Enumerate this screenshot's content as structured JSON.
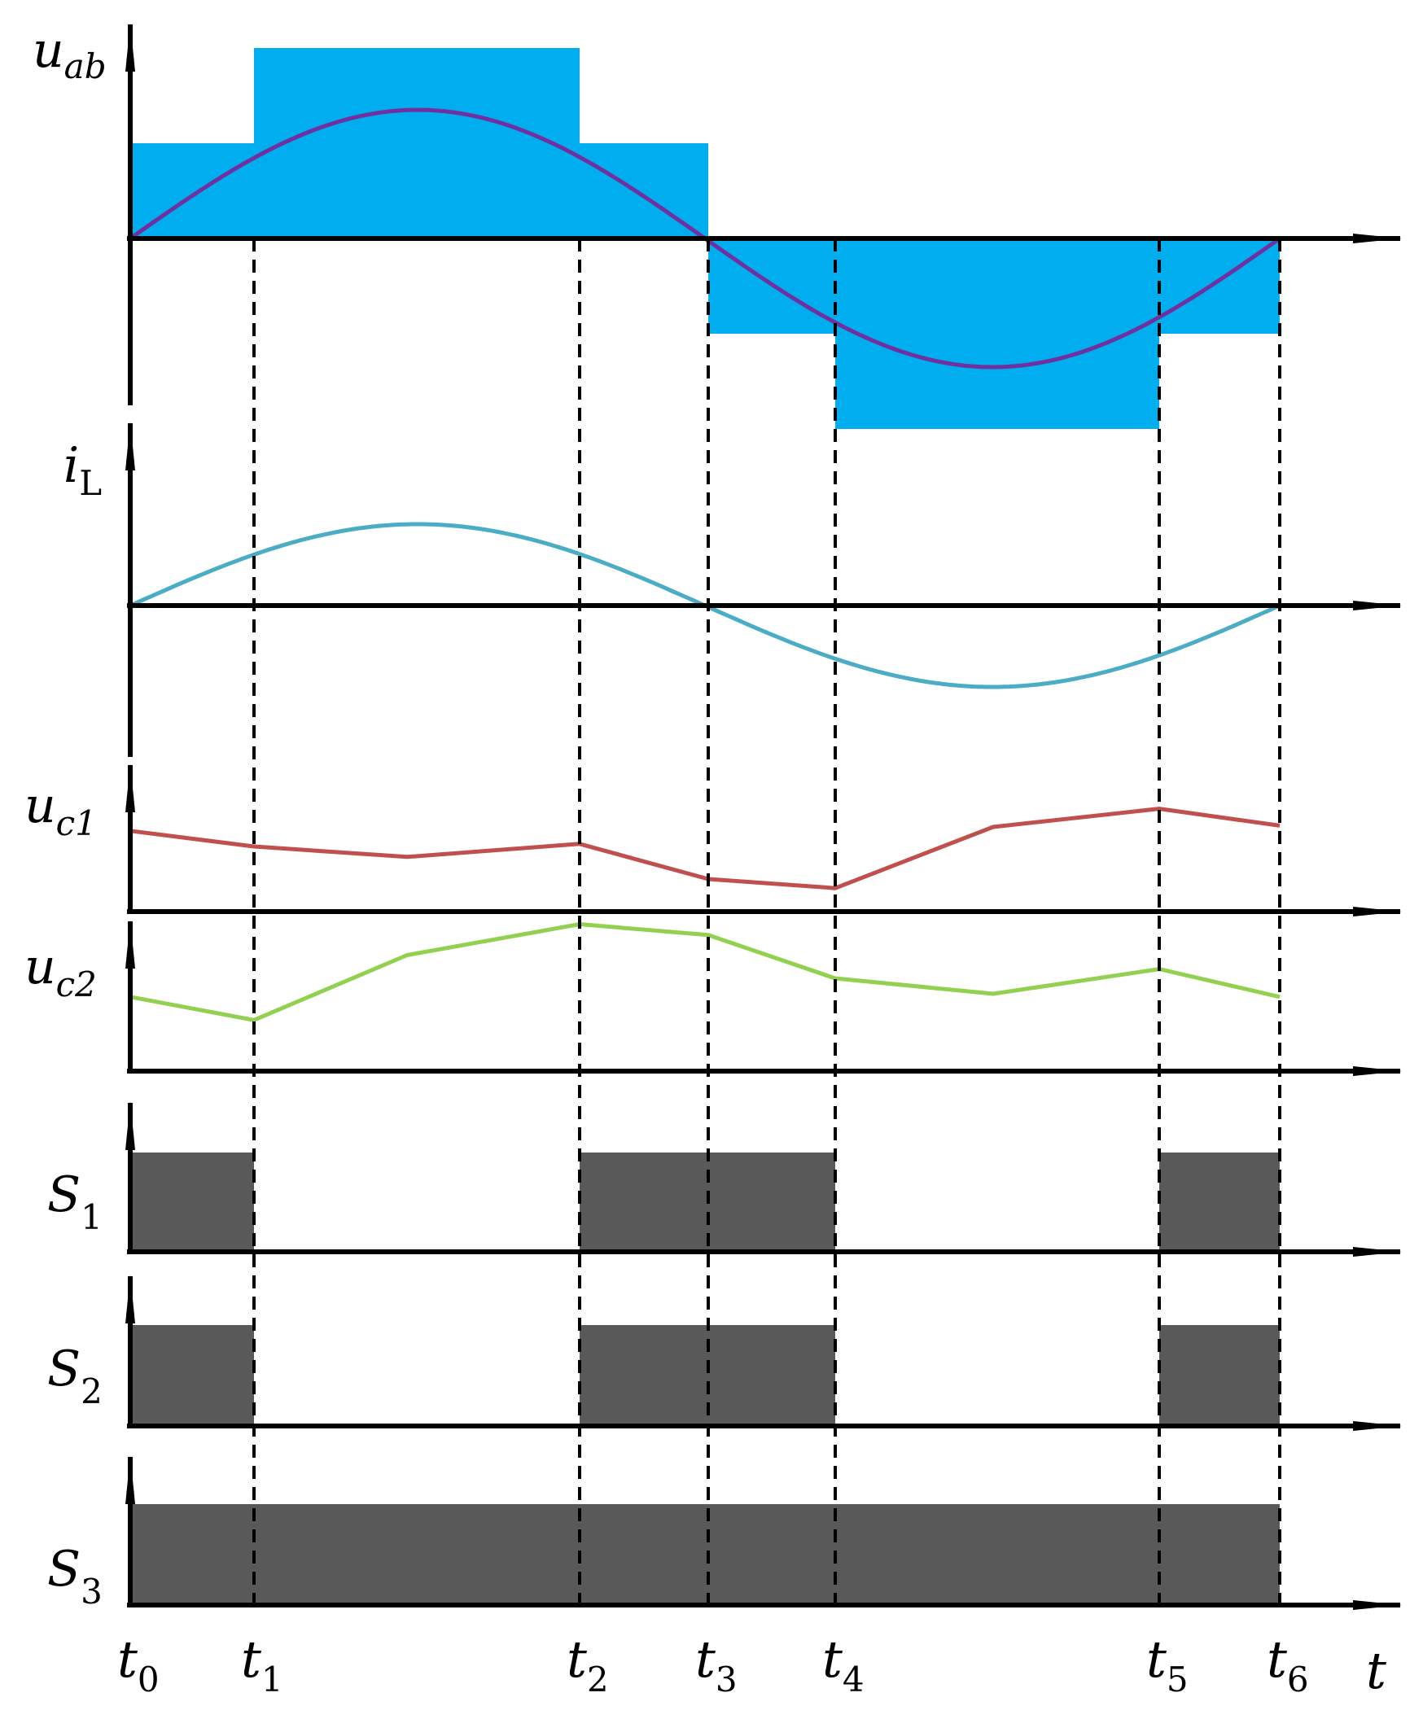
{
  "labels": {
    "uab_main": "u",
    "uab_sub": "ab",
    "iL_main": "i",
    "iL_sub": "L",
    "uc1_main": "u",
    "uc1_sub": "c1",
    "uc2_main": "u",
    "uc2_sub": "c2",
    "s1_main": "S",
    "s1_sub": "1",
    "s2_main": "S",
    "s2_sub": "2",
    "s3_main": "S",
    "s3_sub": "3",
    "t_axis": "t"
  },
  "time_marks": [
    {
      "main": "t",
      "sub": "0"
    },
    {
      "main": "t",
      "sub": "1"
    },
    {
      "main": "t",
      "sub": "2"
    },
    {
      "main": "t",
      "sub": "3"
    },
    {
      "main": "t",
      "sub": "4"
    },
    {
      "main": "t",
      "sub": "5"
    },
    {
      "main": "t",
      "sub": "6"
    }
  ],
  "colors": {
    "uab_fill": "#00AEEF",
    "uab_sine": "#7030A0",
    "iL_curve": "#4BACC6",
    "uc1_line": "#C0504D",
    "uc2_line": "#92D050",
    "switch_fill": "#595959",
    "axis": "#000000"
  },
  "waveforms": {
    "uab_levels": [
      1,
      2,
      1,
      -1,
      -2,
      -1
    ],
    "uc1_points": [
      0.62,
      0.5,
      0.42,
      0.52,
      0.25,
      0.18,
      0.65,
      0.79,
      0.66
    ],
    "uc2_points": [
      0.48,
      0.33,
      0.75,
      0.95,
      0.88,
      0.6,
      0.5,
      0.66,
      0.48
    ],
    "s1_on": [
      [
        0,
        1
      ],
      [
        2,
        4
      ],
      [
        5,
        6
      ]
    ],
    "s2_on": [
      [
        0,
        1
      ],
      [
        2,
        4
      ],
      [
        5,
        6
      ]
    ],
    "s3_on": [
      [
        0,
        6
      ]
    ]
  }
}
